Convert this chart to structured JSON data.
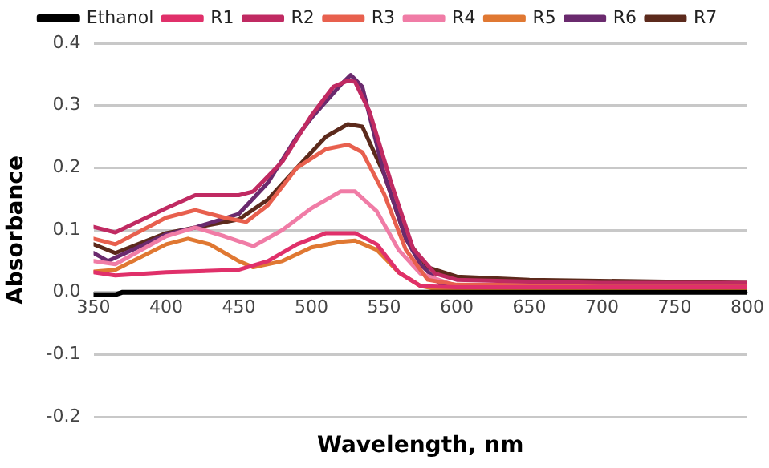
{
  "chart_data": {
    "type": "line",
    "xlabel": "Wavelength, nm",
    "ylabel": "Absorbance",
    "xlim": [
      350,
      800
    ],
    "xticks": [
      350,
      400,
      450,
      500,
      550,
      600,
      650,
      700,
      750,
      800
    ],
    "ylim": [
      -0.2,
      0.4
    ],
    "yticks": [
      {
        "value": -0.2,
        "label": "-0.2"
      },
      {
        "value": -0.1,
        "label": "-0.1"
      },
      {
        "value": 0,
        "label": "0.0"
      },
      {
        "value": 0.1,
        "label": "0.1"
      },
      {
        "value": 0.2,
        "label": "0.2"
      },
      {
        "value": 0.3,
        "label": "0.3"
      },
      {
        "value": 0.4,
        "label": "0.4"
      }
    ],
    "grid": "y",
    "legend": "top",
    "marker": "none",
    "line_style": "solid",
    "series": [
      {
        "name": "Ethanol",
        "color": "#000000",
        "x": [
          350,
          365,
          370,
          800
        ],
        "values": [
          -0.004,
          -0.004,
          0,
          0
        ]
      },
      {
        "name": "R1",
        "color": "#e0306a",
        "x": [
          350,
          365,
          400,
          450,
          470,
          490,
          510,
          530,
          545,
          560,
          575,
          600,
          800
        ],
        "values": [
          0.032,
          0.027,
          0.032,
          0.036,
          0.05,
          0.077,
          0.095,
          0.095,
          0.077,
          0.032,
          0.01,
          0.008,
          0.008
        ]
      },
      {
        "name": "R2",
        "color": "#c02a62",
        "x": [
          350,
          365,
          400,
          420,
          450,
          460,
          480,
          500,
          515,
          525,
          530,
          540,
          555,
          570,
          585,
          600,
          650,
          700,
          800
        ],
        "values": [
          0.105,
          0.096,
          0.135,
          0.156,
          0.156,
          0.162,
          0.21,
          0.284,
          0.33,
          0.34,
          0.338,
          0.29,
          0.175,
          0.07,
          0.03,
          0.02,
          0.017,
          0.015,
          0.015
        ]
      },
      {
        "name": "R3",
        "color": "#e8604e",
        "x": [
          350,
          365,
          400,
          420,
          440,
          455,
          470,
          490,
          510,
          525,
          535,
          550,
          565,
          580,
          600,
          800
        ],
        "values": [
          0.086,
          0.077,
          0.12,
          0.132,
          0.12,
          0.113,
          0.14,
          0.2,
          0.23,
          0.237,
          0.225,
          0.158,
          0.068,
          0.02,
          0.012,
          0.01
        ]
      },
      {
        "name": "R4",
        "color": "#f07ca6",
        "x": [
          350,
          365,
          400,
          420,
          440,
          460,
          480,
          500,
          520,
          530,
          545,
          560,
          575,
          600,
          800
        ],
        "values": [
          0.05,
          0.045,
          0.09,
          0.104,
          0.09,
          0.074,
          0.1,
          0.135,
          0.162,
          0.162,
          0.13,
          0.068,
          0.03,
          0.01,
          0.008
        ]
      },
      {
        "name": "R5",
        "color": "#e07832",
        "x": [
          350,
          365,
          400,
          415,
          430,
          450,
          460,
          480,
          500,
          520,
          530,
          545,
          560,
          575,
          590,
          800
        ],
        "values": [
          0.033,
          0.036,
          0.077,
          0.086,
          0.077,
          0.05,
          0.04,
          0.05,
          0.072,
          0.081,
          0.083,
          0.068,
          0.032,
          0.01,
          0.003,
          0.003
        ]
      },
      {
        "name": "R6",
        "color": "#6a2a6e",
        "x": [
          350,
          360,
          400,
          420,
          450,
          470,
          490,
          500,
          520,
          527,
          535,
          550,
          565,
          575,
          590,
          620,
          800
        ],
        "values": [
          0.063,
          0.05,
          0.093,
          0.104,
          0.126,
          0.176,
          0.25,
          0.28,
          0.333,
          0.349,
          0.33,
          0.19,
          0.086,
          0.045,
          0.01,
          0.003,
          0.002
        ]
      },
      {
        "name": "R7",
        "color": "#5c2a1c",
        "x": [
          350,
          365,
          400,
          420,
          450,
          470,
          490,
          510,
          525,
          535,
          550,
          565,
          580,
          600,
          650,
          800
        ],
        "values": [
          0.077,
          0.063,
          0.095,
          0.104,
          0.117,
          0.149,
          0.2,
          0.25,
          0.27,
          0.266,
          0.19,
          0.086,
          0.04,
          0.025,
          0.02,
          0.015
        ]
      }
    ]
  }
}
